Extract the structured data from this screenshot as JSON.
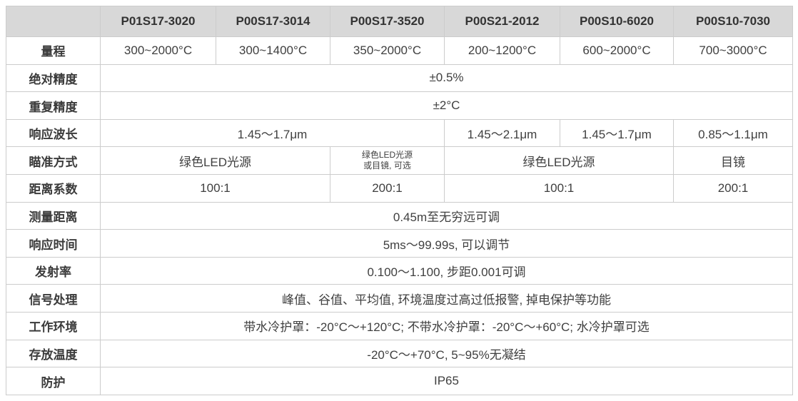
{
  "colors": {
    "header_bg": "#d8d8d8",
    "border": "#cccccc",
    "text": "#3b3b3b",
    "page_bg": "#ffffff"
  },
  "table": {
    "corner_label": "",
    "column_headers": [
      "P01S17-3020",
      "P00S17-3014",
      "P00S17-3520",
      "P00S21-2012",
      "P00S10-6020",
      "P00S10-7030"
    ],
    "rows": [
      {
        "label": "量程",
        "cells": [
          {
            "text": "300~2000°C",
            "span": 1
          },
          {
            "text": "300~1400°C",
            "span": 1
          },
          {
            "text": "350~2000°C",
            "span": 1
          },
          {
            "text": "200~1200°C",
            "span": 1
          },
          {
            "text": "600~2000°C",
            "span": 1
          },
          {
            "text": "700~3000°C",
            "span": 1
          }
        ]
      },
      {
        "label": "绝对精度",
        "cells": [
          {
            "text": "±0.5%",
            "span": 6
          }
        ]
      },
      {
        "label": "重复精度",
        "cells": [
          {
            "text": "±2°C",
            "span": 6
          }
        ]
      },
      {
        "label": "响应波长",
        "cells": [
          {
            "text": "1.45～1.7μm",
            "span": 3
          },
          {
            "text": "1.45～2.1μm",
            "span": 1
          },
          {
            "text": "1.45～1.7μm",
            "span": 1
          },
          {
            "text": "0.85～1.1μm",
            "span": 1
          }
        ]
      },
      {
        "label": "瞄准方式",
        "cells": [
          {
            "text": "绿色LED光源",
            "span": 2
          },
          {
            "lines": [
              "绿色LED光源",
              "或目镜, 可选"
            ],
            "span": 1,
            "small": true
          },
          {
            "text": "绿色LED光源",
            "span": 2
          },
          {
            "text": "目镜",
            "span": 1
          }
        ]
      },
      {
        "label": "距离系数",
        "cells": [
          {
            "text": "100:1",
            "span": 2
          },
          {
            "text": "200:1",
            "span": 1
          },
          {
            "text": "100:1",
            "span": 2
          },
          {
            "text": "200:1",
            "span": 1
          }
        ]
      },
      {
        "label": "测量距离",
        "cells": [
          {
            "text": "0.45m至无穷远可调",
            "span": 6
          }
        ]
      },
      {
        "label": "响应时间",
        "cells": [
          {
            "text": "5ms～99.99s, 可以调节",
            "span": 6
          }
        ]
      },
      {
        "label": "发射率",
        "cells": [
          {
            "text": "0.100～1.100, 步距0.001可调",
            "span": 6
          }
        ]
      },
      {
        "label": "信号处理",
        "cells": [
          {
            "text": "峰值、谷值、平均值, 环境温度过高过低报警, 掉电保护等功能",
            "span": 6
          }
        ]
      },
      {
        "label": "工作环境",
        "cells": [
          {
            "text": "带水冷护罩：-20°C～+120°C; 不带水冷护罩：-20°C～+60°C; 水冷护罩可选",
            "span": 6
          }
        ]
      },
      {
        "label": "存放温度",
        "cells": [
          {
            "text": "-20°C～+70°C, 5~95%无凝结",
            "span": 6
          }
        ]
      },
      {
        "label": "防护",
        "cells": [
          {
            "text": "IP65",
            "span": 6
          }
        ]
      }
    ]
  }
}
